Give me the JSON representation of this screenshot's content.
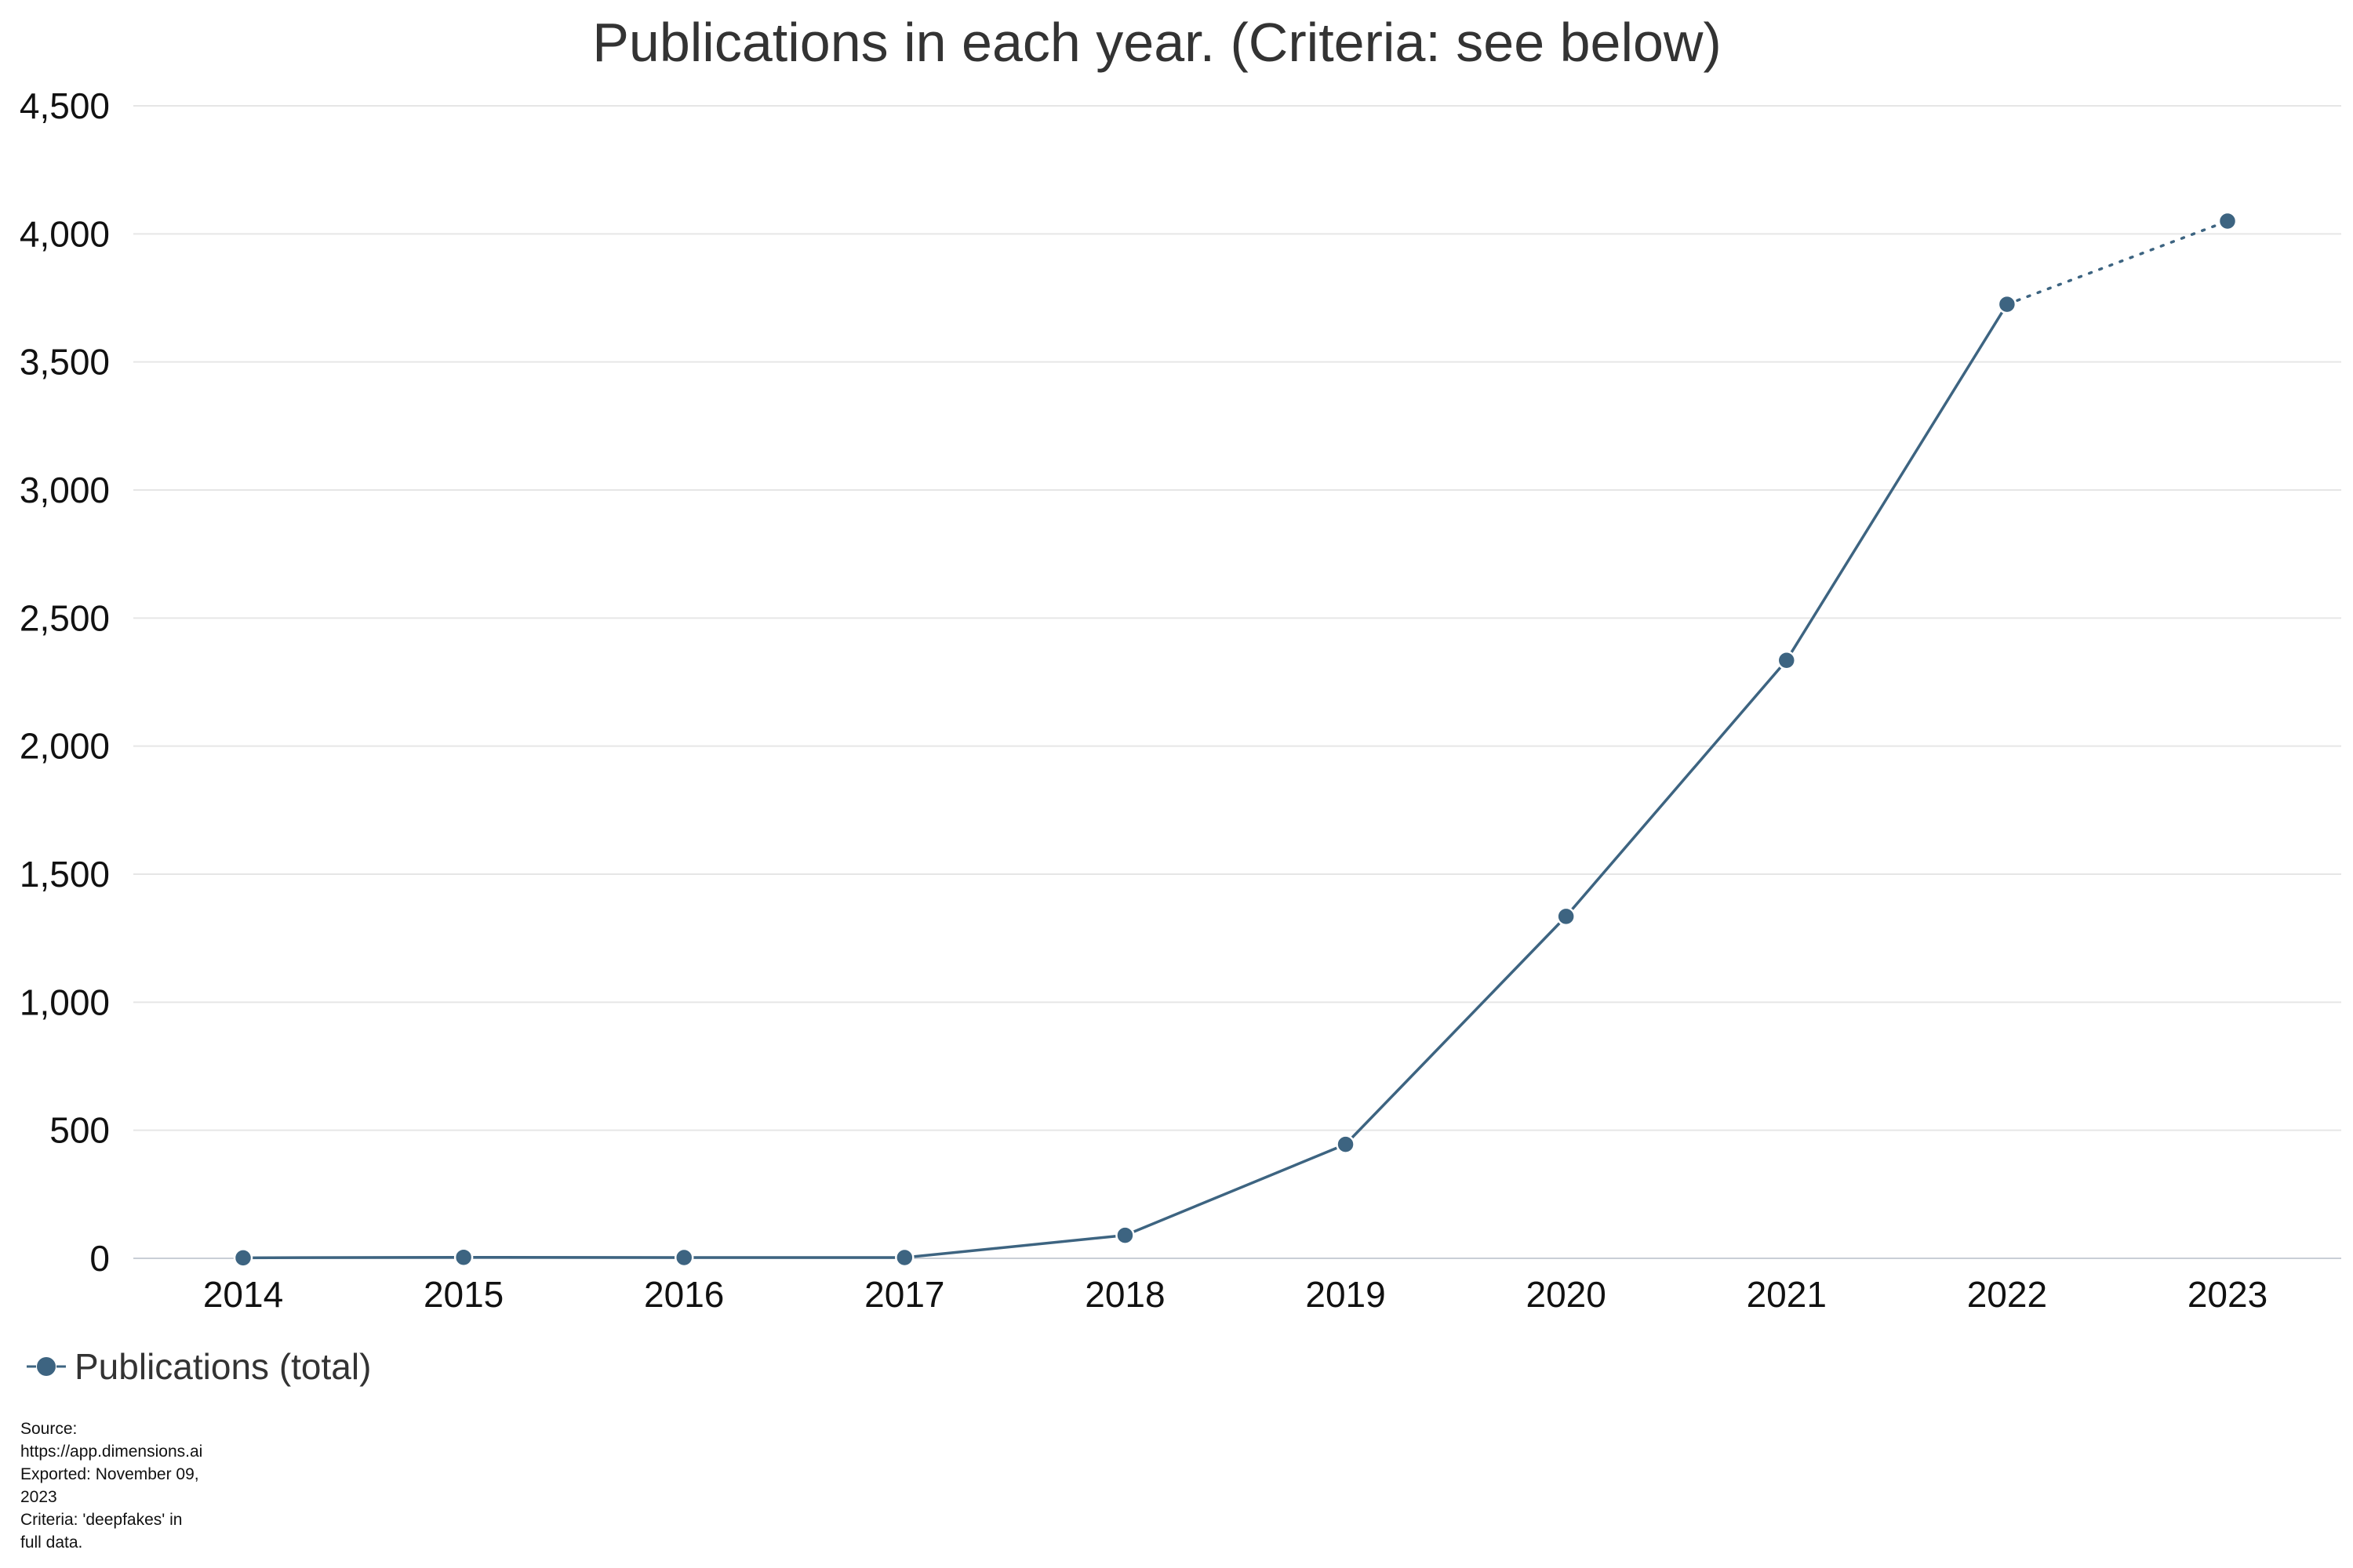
{
  "chart_data": {
    "type": "line",
    "title": "Publications in each year. (Criteria: see below)",
    "xlabel": "",
    "ylabel": "",
    "categories": [
      "2014",
      "2015",
      "2016",
      "2017",
      "2018",
      "2019",
      "2020",
      "2021",
      "2022",
      "2023"
    ],
    "series": [
      {
        "name": "Publications (total)",
        "values": [
          2,
          4,
          3,
          3,
          90,
          445,
          1335,
          2335,
          3725,
          4050
        ],
        "color": "#3d6481",
        "line_style": "solid",
        "last_segment_style": "dotted"
      }
    ],
    "ylim": [
      0,
      4500
    ],
    "yticks": [
      0,
      500,
      1000,
      1500,
      2000,
      2500,
      3000,
      3500,
      4000,
      4500
    ],
    "ytick_labels": [
      "0",
      "500",
      "1,000",
      "1,500",
      "2,000",
      "2,500",
      "3,000",
      "3,500",
      "4,000",
      "4,500"
    ],
    "grid": true,
    "legend_position": "bottom-left"
  },
  "source_note": {
    "lines": [
      "Source:",
      "https://app.dimensions.ai",
      "Exported: November 09,",
      "2023",
      "Criteria: 'deepfakes' in",
      "full data."
    ]
  }
}
